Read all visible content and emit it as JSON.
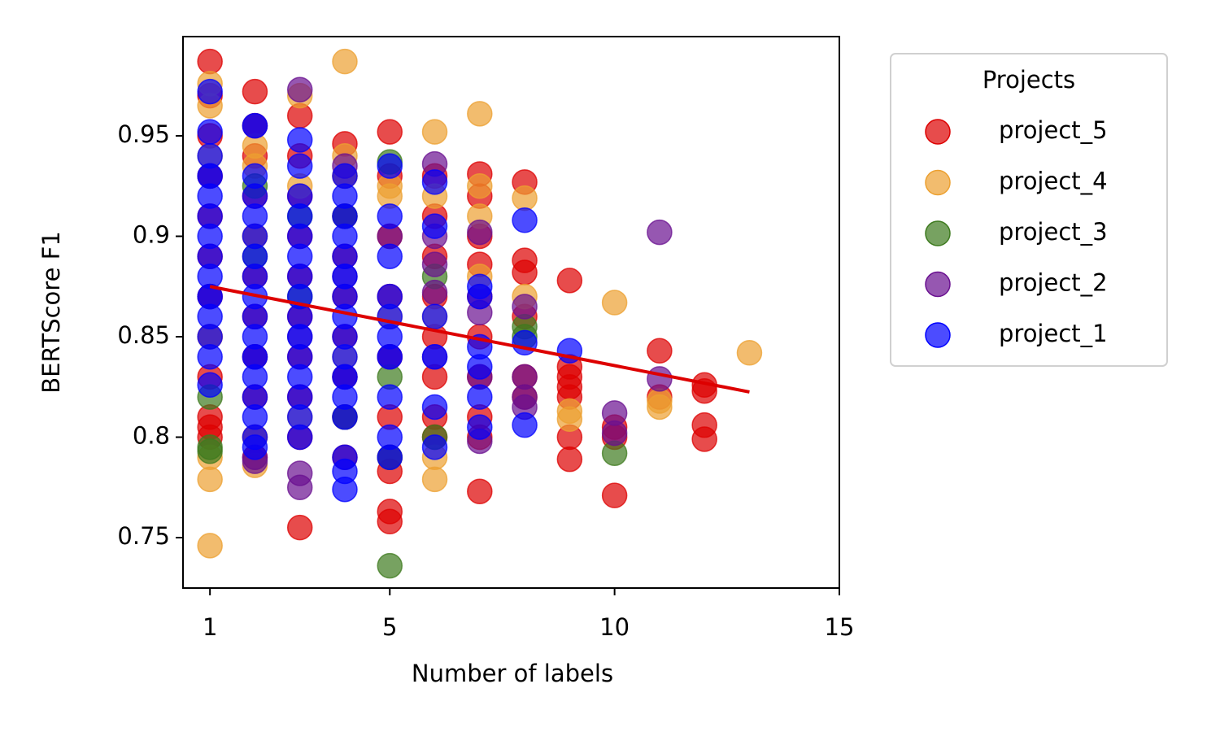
{
  "chart_data": {
    "type": "scatter",
    "x_label": "Number of labels",
    "y_label": "BERTScore F1",
    "xlim": [
      0.4,
      15
    ],
    "ylim": [
      0.7249,
      0.9994
    ],
    "xticks": [
      1,
      5,
      10,
      15
    ],
    "yticks": [
      0.75,
      0.8,
      0.85,
      0.9,
      0.95
    ],
    "legend_title": "Projects",
    "legend": "outside upper right",
    "series": [
      {
        "name": "project_5",
        "color": "#dd0000",
        "x": [
          1,
          1,
          1,
          1,
          1,
          1,
          1,
          1,
          1,
          1,
          1,
          1,
          2,
          2,
          2,
          2,
          2,
          2,
          2,
          2,
          2,
          2,
          2,
          3,
          3,
          3,
          3,
          3,
          3,
          3,
          3,
          3,
          3,
          4,
          4,
          4,
          4,
          4,
          4,
          4,
          4,
          4,
          5,
          5,
          5,
          5,
          5,
          5,
          5,
          5,
          5,
          5,
          6,
          6,
          6,
          6,
          6,
          6,
          6,
          6,
          7,
          7,
          7,
          7,
          7,
          7,
          7,
          7,
          7,
          7,
          8,
          8,
          8,
          8,
          8,
          8,
          9,
          9,
          9,
          9,
          9,
          9,
          9,
          10,
          10,
          10,
          11,
          11,
          12,
          12,
          12,
          12
        ],
        "values": [
          0.987,
          0.97,
          0.95,
          0.93,
          0.91,
          0.89,
          0.87,
          0.85,
          0.83,
          0.81,
          0.8,
          0.805,
          0.972,
          0.955,
          0.94,
          0.92,
          0.9,
          0.88,
          0.86,
          0.84,
          0.82,
          0.8,
          0.79,
          0.96,
          0.94,
          0.92,
          0.9,
          0.88,
          0.86,
          0.84,
          0.82,
          0.8,
          0.755,
          0.946,
          0.93,
          0.91,
          0.89,
          0.87,
          0.85,
          0.83,
          0.81,
          0.79,
          0.952,
          0.93,
          0.9,
          0.87,
          0.84,
          0.81,
          0.79,
          0.783,
          0.763,
          0.758,
          0.93,
          0.91,
          0.89,
          0.87,
          0.85,
          0.83,
          0.81,
          0.8,
          0.931,
          0.92,
          0.9,
          0.886,
          0.87,
          0.85,
          0.83,
          0.81,
          0.8,
          0.773,
          0.927,
          0.888,
          0.882,
          0.86,
          0.83,
          0.82,
          0.878,
          0.835,
          0.83,
          0.825,
          0.82,
          0.8,
          0.789,
          0.805,
          0.8,
          0.771,
          0.843,
          0.82,
          0.826,
          0.823,
          0.806,
          0.799
        ]
      },
      {
        "name": "project_4",
        "color": "#eca030",
        "x": [
          1,
          1,
          1,
          1,
          1,
          1,
          1,
          2,
          2,
          2,
          2,
          2,
          3,
          3,
          3,
          4,
          4,
          4,
          4,
          5,
          5,
          5,
          6,
          6,
          6,
          6,
          6,
          7,
          7,
          7,
          7,
          8,
          8,
          9,
          9,
          10,
          11,
          11,
          13
        ],
        "values": [
          0.976,
          0.965,
          0.94,
          0.85,
          0.79,
          0.779,
          0.746,
          0.945,
          0.935,
          0.9,
          0.8,
          0.786,
          0.97,
          0.925,
          0.81,
          0.987,
          0.94,
          0.93,
          0.84,
          0.925,
          0.92,
          0.86,
          0.952,
          0.92,
          0.86,
          0.79,
          0.779,
          0.961,
          0.925,
          0.91,
          0.88,
          0.919,
          0.87,
          0.813,
          0.809,
          0.867,
          0.815,
          0.818,
          0.842
        ]
      },
      {
        "name": "project_3",
        "color": "#3d7a1e",
        "x": [
          1,
          1,
          1,
          2,
          2,
          3,
          3,
          4,
          4,
          5,
          5,
          5,
          5,
          6,
          6,
          8,
          8,
          10
        ],
        "values": [
          0.82,
          0.793,
          0.795,
          0.925,
          0.89,
          0.91,
          0.87,
          0.91,
          0.81,
          0.937,
          0.83,
          0.79,
          0.736,
          0.88,
          0.8,
          0.855,
          0.85,
          0.792
        ]
      },
      {
        "name": "project_2",
        "color": "#6a1090",
        "x": [
          1,
          1,
          2,
          2,
          2,
          2,
          3,
          3,
          3,
          3,
          4,
          4,
          4,
          5,
          5,
          6,
          6,
          6,
          6,
          6,
          7,
          7,
          7,
          7,
          8,
          8,
          8,
          8,
          10,
          10,
          11,
          11
        ],
        "values": [
          0.93,
          0.87,
          0.955,
          0.84,
          0.788,
          0.79,
          0.973,
          0.85,
          0.782,
          0.775,
          0.935,
          0.88,
          0.83,
          0.9,
          0.84,
          0.936,
          0.9,
          0.886,
          0.872,
          0.84,
          0.902,
          0.862,
          0.83,
          0.798,
          0.865,
          0.83,
          0.82,
          0.815,
          0.812,
          0.802,
          0.902,
          0.829
        ]
      },
      {
        "name": "project_1",
        "color": "#0000ff",
        "x": [
          1,
          1,
          1,
          1,
          1,
          1,
          1,
          1,
          1,
          1,
          1,
          1,
          1,
          1,
          2,
          2,
          2,
          2,
          2,
          2,
          2,
          2,
          2,
          2,
          2,
          2,
          2,
          2,
          2,
          2,
          3,
          3,
          3,
          3,
          3,
          3,
          3,
          3,
          3,
          3,
          3,
          3,
          3,
          3,
          3,
          4,
          4,
          4,
          4,
          4,
          4,
          4,
          4,
          4,
          4,
          4,
          4,
          4,
          4,
          4,
          4,
          5,
          5,
          5,
          5,
          5,
          5,
          5,
          5,
          5,
          5,
          6,
          6,
          6,
          6,
          6,
          6,
          7,
          7,
          7,
          7,
          7,
          7,
          8,
          8,
          8,
          9
        ],
        "values": [
          0.972,
          0.952,
          0.94,
          0.93,
          0.92,
          0.91,
          0.9,
          0.89,
          0.88,
          0.87,
          0.86,
          0.85,
          0.84,
          0.826,
          0.955,
          0.93,
          0.92,
          0.91,
          0.9,
          0.89,
          0.88,
          0.87,
          0.86,
          0.85,
          0.84,
          0.83,
          0.82,
          0.81,
          0.8,
          0.795,
          0.948,
          0.935,
          0.92,
          0.91,
          0.9,
          0.89,
          0.88,
          0.87,
          0.86,
          0.85,
          0.84,
          0.83,
          0.82,
          0.81,
          0.8,
          0.93,
          0.92,
          0.91,
          0.9,
          0.89,
          0.88,
          0.87,
          0.86,
          0.85,
          0.84,
          0.83,
          0.82,
          0.81,
          0.79,
          0.783,
          0.774,
          0.935,
          0.91,
          0.89,
          0.87,
          0.86,
          0.85,
          0.84,
          0.82,
          0.8,
          0.79,
          0.927,
          0.905,
          0.86,
          0.84,
          0.815,
          0.795,
          0.875,
          0.87,
          0.845,
          0.835,
          0.82,
          0.805,
          0.908,
          0.847,
          0.806,
          0.843
        ]
      }
    ],
    "trend_line": {
      "x": [
        1,
        13
      ],
      "values": [
        0.875,
        0.8225
      ],
      "color": "#dd0000"
    }
  }
}
